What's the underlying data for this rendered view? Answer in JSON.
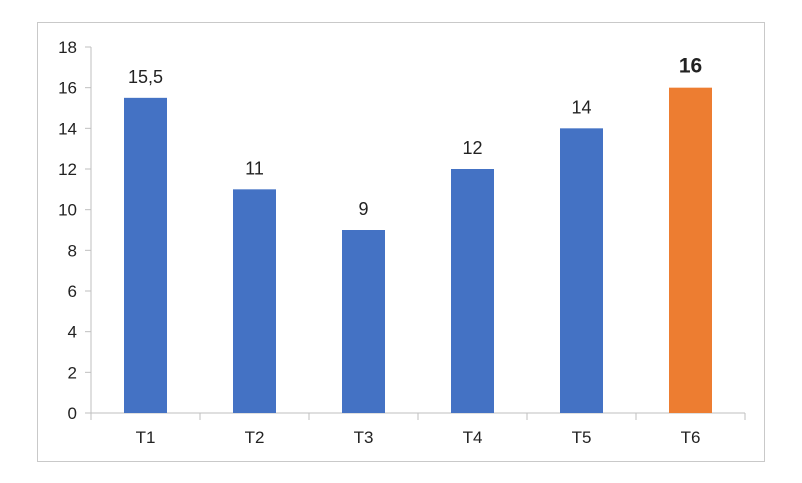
{
  "chart_data": {
    "type": "bar",
    "title": "",
    "xlabel": "",
    "ylabel": "",
    "categories": [
      "T1",
      "T2",
      "T3",
      "T4",
      "T5",
      "T6"
    ],
    "values": [
      15.5,
      11,
      9,
      12,
      14,
      16
    ],
    "data_labels": [
      "15,5",
      "11",
      "9",
      "12",
      "14",
      "16"
    ],
    "y_tick_labels": [
      "0",
      "2",
      "4",
      "6",
      "8",
      "10",
      "12",
      "14",
      "16",
      "18"
    ],
    "ylim": [
      0,
      18
    ],
    "y_step": 2,
    "grid": false,
    "legend": "none",
    "colors": {
      "bar": "#4472C4",
      "highlight_bar": "#ED7D31",
      "highlight_label": "#ED7D31",
      "axis": "#bfbfbf"
    },
    "highlight_index": 5
  }
}
